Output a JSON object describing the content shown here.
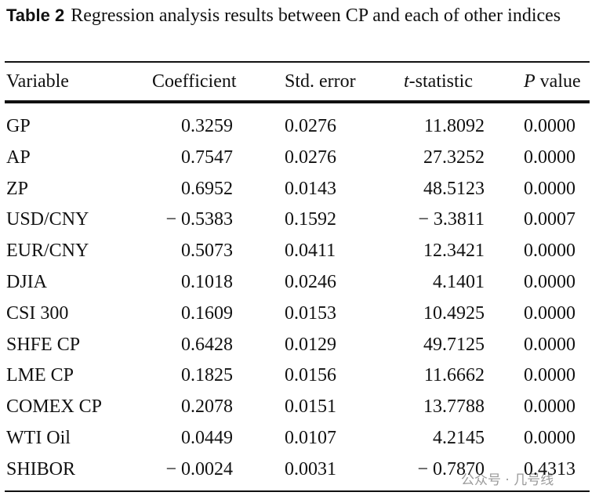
{
  "table": {
    "label": "Table 2",
    "caption": "Regression analysis results between CP and each of other indices",
    "header": [
      {
        "text": "Variable"
      },
      {
        "text": "Coefficient"
      },
      {
        "text": "Std. error"
      },
      {
        "italic": "t",
        "text": "-statistic"
      },
      {
        "italic": "P",
        "text": " value"
      }
    ],
    "rows": [
      [
        "GP",
        "0.3259",
        "0.0276",
        "11.8092",
        "0.0000"
      ],
      [
        "AP",
        "0.7547",
        "0.0276",
        "27.3252",
        "0.0000"
      ],
      [
        "ZP",
        "0.6952",
        "0.0143",
        "48.5123",
        "0.0000"
      ],
      [
        "USD/CNY",
        "− 0.5383",
        "0.1592",
        "− 3.3811",
        "0.0007"
      ],
      [
        "EUR/CNY",
        "0.5073",
        "0.0411",
        "12.3421",
        "0.0000"
      ],
      [
        "DJIA",
        "0.1018",
        "0.0246",
        "4.1401",
        "0.0000"
      ],
      [
        "CSI 300",
        "0.1609",
        "0.0153",
        "10.4925",
        "0.0000"
      ],
      [
        "SHFE CP",
        "0.6428",
        "0.0129",
        "49.7125",
        "0.0000"
      ],
      [
        "LME CP",
        "0.1825",
        "0.0156",
        "11.6662",
        "0.0000"
      ],
      [
        "COMEX CP",
        "0.2078",
        "0.0151",
        "13.7788",
        "0.0000"
      ],
      [
        "WTI Oil",
        "0.0449",
        "0.0107",
        "4.2145",
        "0.0000"
      ],
      [
        "SHIBOR",
        "− 0.0024",
        "0.0031",
        "− 0.7870",
        "0.4313"
      ]
    ]
  },
  "watermark": "公众号 · 几号线"
}
